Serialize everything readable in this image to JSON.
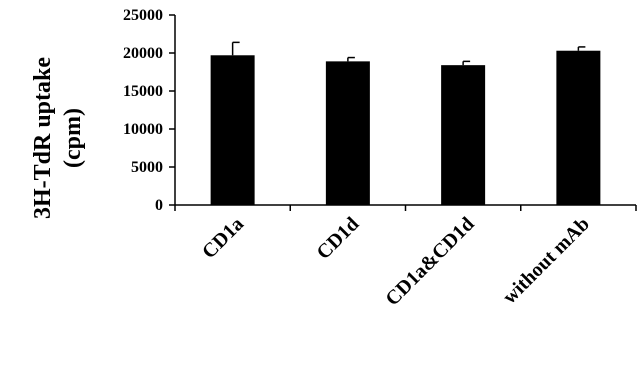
{
  "chart_data": {
    "type": "bar",
    "title": "",
    "xlabel": "",
    "ylabel": [
      "3H-TdR uptake",
      "(cpm)"
    ],
    "categories": [
      "CD1a",
      "CD1d",
      "CD1a&CD1d",
      "without mAb"
    ],
    "values": [
      19700,
      18900,
      18400,
      20300
    ],
    "errors": [
      1700,
      500,
      500,
      500
    ],
    "ylim": [
      0,
      25000
    ],
    "yticks": [
      0,
      5000,
      10000,
      15000,
      20000,
      25000
    ],
    "bar_color": "#000000",
    "grid": false,
    "legend": "none"
  }
}
